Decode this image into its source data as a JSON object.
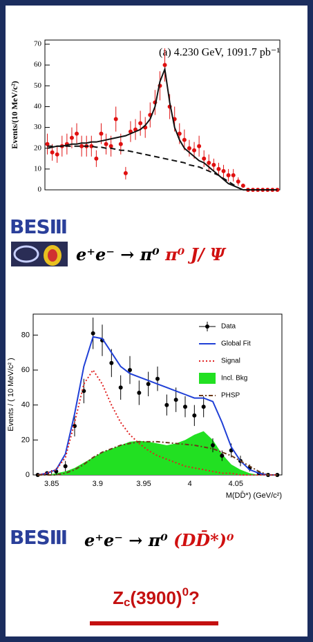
{
  "chart_data": [
    {
      "type": "scatter",
      "ylabel": "Events/(10 MeV/c²)",
      "annotation": "(a) 4.230 GeV, 1091.7 pb⁻¹",
      "categories": [
        null,
        null,
        null,
        null,
        null,
        null,
        null,
        null,
        null,
        null,
        null,
        null,
        null,
        null,
        null,
        null,
        null,
        null,
        null,
        null,
        null,
        null,
        null,
        null,
        null,
        null,
        null,
        null,
        null,
        null,
        null,
        null,
        null,
        null,
        null,
        null,
        null,
        null,
        null,
        null,
        null,
        null,
        null,
        null,
        null,
        null,
        null,
        null
      ],
      "ylim": [
        0,
        72
      ],
      "yticks": [
        0,
        10,
        20,
        30,
        40,
        50,
        60,
        70
      ],
      "series": [
        {
          "style": "errorbar",
          "color": "#e01010",
          "values": [
            22,
            18,
            17,
            21,
            22,
            25,
            27,
            21,
            21,
            21,
            15,
            27,
            22,
            21,
            34,
            22,
            8,
            28,
            29,
            32,
            30,
            36,
            42,
            50,
            60,
            40,
            34,
            27,
            24,
            20,
            19,
            21,
            15,
            13,
            12,
            10,
            9,
            7,
            7,
            4,
            2,
            0,
            0,
            0,
            0,
            0,
            0,
            0
          ],
          "errors": [
            5,
            4,
            4,
            5,
            5,
            5,
            5,
            5,
            5,
            5,
            4,
            5,
            5,
            5,
            6,
            5,
            3,
            5,
            5,
            6,
            5,
            6,
            6,
            7,
            8,
            6,
            6,
            5,
            5,
            4,
            4,
            5,
            4,
            4,
            3,
            3,
            3,
            3,
            3,
            2,
            1,
            0,
            0,
            0,
            0,
            0,
            0,
            0
          ]
        },
        {
          "style": "line",
          "color": "#111111",
          "values": [
            20,
            20.5,
            21,
            21,
            21.5,
            22,
            22,
            22.5,
            22.5,
            23,
            23,
            23.5,
            24,
            24.5,
            25,
            25.5,
            26,
            27,
            28,
            29,
            31,
            34,
            40,
            52,
            58,
            42,
            30,
            24,
            20,
            18,
            16,
            14,
            13,
            11,
            9,
            7,
            5,
            3,
            2,
            1,
            0,
            0,
            0,
            0,
            0,
            0,
            0,
            0
          ]
        },
        {
          "style": "dashed",
          "color": "#111111",
          "values": [
            21,
            21,
            21,
            21,
            21,
            21,
            21,
            21,
            21,
            21,
            20.5,
            20.5,
            20,
            20,
            19.5,
            19,
            19,
            18.5,
            18,
            17.5,
            17,
            16.5,
            16,
            15.5,
            15,
            14.5,
            14,
            13.5,
            13,
            12,
            11.5,
            11,
            10,
            9,
            8,
            7,
            5.5,
            4,
            2.5,
            1,
            0,
            0,
            0,
            0,
            0,
            0,
            0,
            0
          ]
        }
      ]
    },
    {
      "type": "scatter",
      "xlabel": "M(DD̄*) (GeV/c²)",
      "ylabel": "Events / ( 10 MeV/c² )",
      "legend": "upper right",
      "x": [
        3.835,
        3.845,
        3.855,
        3.865,
        3.875,
        3.885,
        3.895,
        3.905,
        3.915,
        3.925,
        3.935,
        3.945,
        3.955,
        3.965,
        3.975,
        3.985,
        3.995,
        4.005,
        4.015,
        4.025,
        4.035,
        4.045,
        4.055,
        4.065,
        4.075,
        4.085,
        4.095
      ],
      "xlim": [
        3.83,
        4.1
      ],
      "xticks": [
        3.85,
        3.9,
        3.95,
        4,
        4.05
      ],
      "ylim": [
        0,
        92
      ],
      "yticks": [
        0,
        20,
        40,
        60,
        80
      ],
      "series": [
        {
          "name": "Data",
          "style": "errorbar",
          "color": "#000000",
          "values": [
            0,
            1,
            2,
            5,
            28,
            48,
            81,
            77,
            64,
            50,
            60,
            47,
            52,
            55,
            40,
            43,
            39,
            34,
            39,
            17,
            11,
            14,
            8,
            4,
            1,
            0,
            0
          ],
          "errors": [
            1,
            1,
            2,
            3,
            6,
            7,
            9,
            9,
            8,
            7,
            8,
            7,
            7,
            7,
            6,
            7,
            6,
            6,
            6,
            4,
            3,
            4,
            3,
            2,
            1,
            1,
            1
          ]
        },
        {
          "name": "Global Fit",
          "style": "line",
          "color": "#1f3fd6",
          "values": [
            0,
            1,
            3,
            12,
            35,
            62,
            79,
            78,
            70,
            62,
            58,
            56,
            54,
            52,
            50,
            48,
            46,
            44,
            44,
            42,
            30,
            16,
            8,
            3,
            1,
            0,
            0
          ]
        },
        {
          "name": "Signal",
          "style": "dotted",
          "color": "#e02020",
          "values": [
            0,
            1,
            3,
            10,
            30,
            52,
            60,
            52,
            40,
            30,
            23,
            18,
            14,
            11,
            9,
            7,
            5,
            4,
            3,
            2,
            1,
            1,
            0,
            0,
            0,
            0,
            0
          ]
        },
        {
          "name": "Incl. Bkg",
          "style": "area",
          "color": "#22e022",
          "values": [
            0,
            0,
            1,
            2,
            4,
            7,
            10,
            13,
            15,
            17,
            19,
            19.5,
            19,
            18,
            17,
            18,
            20,
            23,
            25,
            20,
            12,
            6,
            3,
            1,
            0,
            0,
            0
          ]
        },
        {
          "name": "PHSP",
          "style": "dashdot",
          "color": "#6b3a1a",
          "values": [
            0,
            0,
            0,
            1,
            3,
            6,
            10,
            13,
            15,
            17,
            18,
            19,
            19,
            19,
            18.5,
            18,
            17.5,
            17,
            16,
            15,
            13,
            11,
            8,
            5,
            2,
            0,
            0
          ]
        }
      ]
    }
  ],
  "panels": [
    {
      "logo": "BESⅢ",
      "reaction": {
        "initial": "e⁺e⁻ → π⁰",
        "highlight": "π⁰ J/ Ψ"
      }
    },
    {
      "logo": "BESⅢ",
      "reaction": {
        "initial": "e⁺e⁻ → π⁰",
        "highlight": "(DD̄*)⁰"
      }
    }
  ],
  "conclusion": {
    "symbol": "Z",
    "subscript": "c",
    "mass": "(3900)",
    "superscript": "0",
    "suffix": "?"
  }
}
